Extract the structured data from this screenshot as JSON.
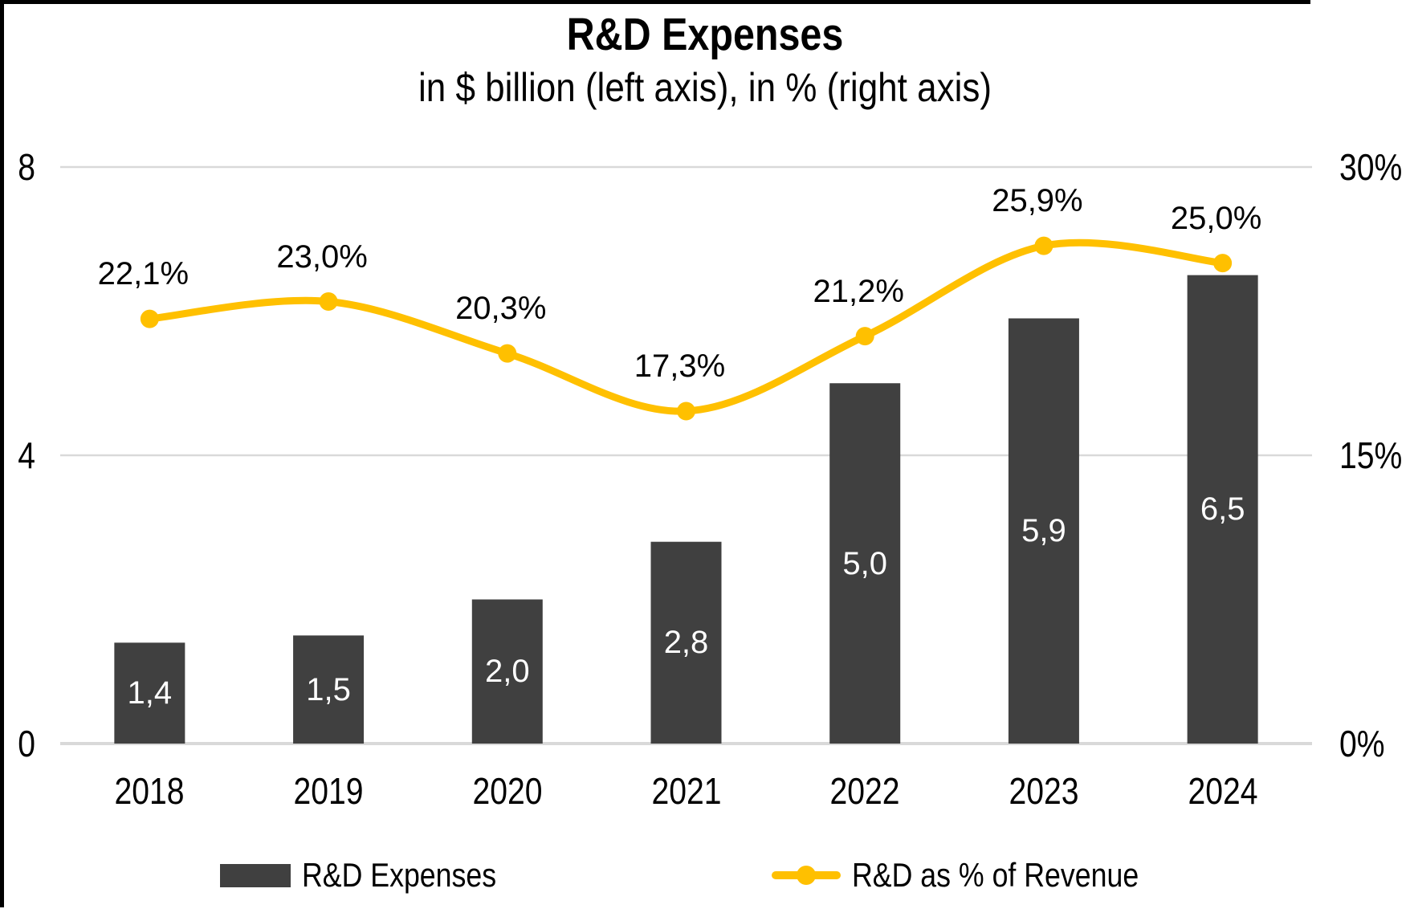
{
  "title": "R&D Expenses",
  "subtitle": "in $ billion (left axis), in % (right axis)",
  "colors": {
    "bar": "#404040",
    "line": "#FFC000",
    "gridline": "#D9D9D9",
    "axis_line": "#D9D9D9",
    "bar_label": "#FFFFFF",
    "text": "#000000",
    "border": "#000000",
    "background": "#FFFFFF"
  },
  "chart_data": {
    "type": "combo-bar-line",
    "categories": [
      "2018",
      "2019",
      "2020",
      "2021",
      "2022",
      "2023",
      "2024"
    ],
    "series": [
      {
        "name": "R&D Expenses",
        "type": "bar",
        "axis": "left",
        "values": [
          1.4,
          1.5,
          2.0,
          2.8,
          5.0,
          5.9,
          6.5
        ],
        "value_labels": [
          "1,4",
          "1,5",
          "2,0",
          "2,8",
          "5,0",
          "5,9",
          "6,5"
        ]
      },
      {
        "name": "R&D as % of Revenue",
        "type": "line",
        "axis": "right",
        "values": [
          22.1,
          23.0,
          20.3,
          17.3,
          21.2,
          25.9,
          25.0
        ],
        "value_labels": [
          "22,1%",
          "23,0%",
          "20,3%",
          "17,3%",
          "21,2%",
          "25,9%",
          "25,0%"
        ]
      }
    ],
    "left_axis": {
      "min": 0,
      "max": 8,
      "ticks": [
        {
          "label": "8",
          "value": 8
        },
        {
          "label": "4",
          "value": 4
        },
        {
          "label": "0",
          "value": 0
        }
      ]
    },
    "right_axis": {
      "min": 0,
      "max": 30,
      "ticks": [
        {
          "label": "30%",
          "value": 30
        },
        {
          "label": "15%",
          "value": 15
        },
        {
          "label": "0%",
          "value": 0
        }
      ]
    },
    "grid": true,
    "line_smooth": true,
    "legend_position": "bottom"
  }
}
